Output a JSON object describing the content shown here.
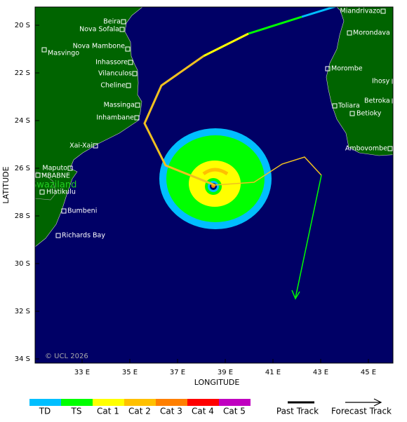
{
  "map": {
    "x_axis": {
      "title": "LONGITUDE",
      "ticks": [
        {
          "value": 33,
          "label": "33 E"
        },
        {
          "value": 35,
          "label": "35 E"
        },
        {
          "value": 37,
          "label": "37 E"
        },
        {
          "value": 39,
          "label": "39 E"
        },
        {
          "value": 41,
          "label": "41 E"
        },
        {
          "value": 43,
          "label": "43 E"
        },
        {
          "value": 45,
          "label": "45 E"
        }
      ]
    },
    "y_axis": {
      "title": "LATITUDE",
      "ticks": [
        {
          "value": 20,
          "label": "20 S"
        },
        {
          "value": 22,
          "label": "22 S"
        },
        {
          "value": 24,
          "label": "24 S"
        },
        {
          "value": 26,
          "label": "26 S"
        },
        {
          "value": 28,
          "label": "28 S"
        },
        {
          "value": 30,
          "label": "30 S"
        },
        {
          "value": 32,
          "label": "32 S"
        },
        {
          "value": 34,
          "label": "34 S"
        }
      ]
    },
    "places": [
      "Beira",
      "Nova Sofala",
      "Nova Mambone",
      "Masvingo",
      "Inhassore",
      "Vilanculos",
      "Cheline",
      "Massinga",
      "Inhambane",
      "Xai-Xai",
      "Maputo",
      "MBABNE",
      "Hlatikulu",
      "Bumbeni",
      "Richards Bay",
      "Miandrivazo",
      "Morondava",
      "Morombe",
      "Ihosy",
      "Toliara",
      "Betroka",
      "Betioky",
      "Ambovombe"
    ],
    "region_label": "Swaziland",
    "copyright": "© UCL 2026"
  },
  "legend": {
    "categories": [
      "TD",
      "TS",
      "Cat 1",
      "Cat 2",
      "Cat 3",
      "Cat 4",
      "Cat 5"
    ],
    "colors": [
      "#00bfff",
      "#00ff00",
      "#ffff00",
      "#ffc000",
      "#ff7f00",
      "#ff0000",
      "#c000c0"
    ],
    "past_track": "Past Track",
    "forecast_track": "Forecast Track"
  }
}
